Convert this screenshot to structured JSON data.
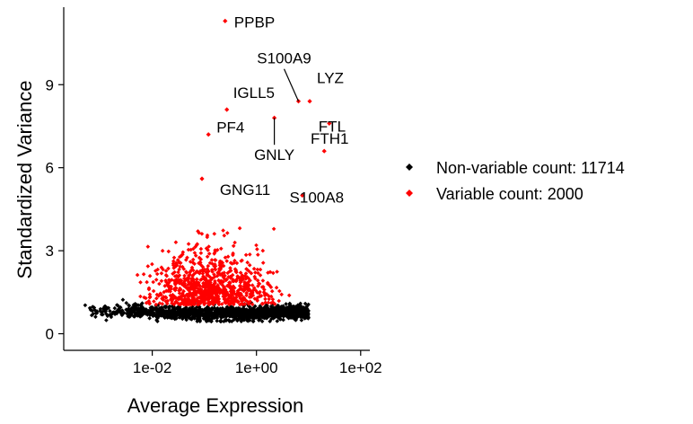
{
  "chart_data": {
    "type": "scatter",
    "title": "",
    "xlabel": "Average Expression",
    "ylabel": "Standardized Variance",
    "xscale": "log10",
    "xlim": [
      0.0002,
      150
    ],
    "ylim": [
      -0.6,
      11.8
    ],
    "x_ticks": [
      {
        "value": 0.01,
        "label": "1e-02"
      },
      {
        "value": 1,
        "label": "1e+00"
      },
      {
        "value": 100,
        "label": "1e+02"
      }
    ],
    "y_ticks": [
      {
        "value": 0,
        "label": "0"
      },
      {
        "value": 3,
        "label": "3"
      },
      {
        "value": 6,
        "label": "6"
      },
      {
        "value": 9,
        "label": "9"
      }
    ],
    "grid": false,
    "legend_position": "right",
    "series": [
      {
        "name": "Non-variable",
        "legend_label": "Non-variable count: 11714",
        "color": "#000000",
        "count": 11714,
        "summary": "dense band of points with standardized variance roughly 0.5 to 1.2 across average expression 0.0003 to 15"
      },
      {
        "name": "Variable",
        "legend_label": "Variable count: 2000",
        "color": "#ff0000",
        "count": 2000,
        "summary": "points with standardized variance roughly 1 to 11 across average expression 0.002 to 50"
      }
    ],
    "labeled_points": [
      {
        "gene": "PPBP",
        "x": 0.25,
        "y": 11.3
      },
      {
        "gene": "S100A9",
        "x": 6.4,
        "y": 8.4
      },
      {
        "gene": "LYZ",
        "x": 10.5,
        "y": 8.4
      },
      {
        "gene": "IGLL5",
        "x": 0.27,
        "y": 8.1
      },
      {
        "gene": "FTL",
        "x": 25,
        "y": 7.6
      },
      {
        "gene": "PF4",
        "x": 0.12,
        "y": 7.2
      },
      {
        "gene": "GNLY",
        "x": 2.2,
        "y": 7.8
      },
      {
        "gene": "FTH1",
        "x": 20,
        "y": 6.6
      },
      {
        "gene": "GNG11",
        "x": 0.09,
        "y": 5.6
      },
      {
        "gene": "S100A8",
        "x": 7.6,
        "y": 5.0
      }
    ]
  }
}
